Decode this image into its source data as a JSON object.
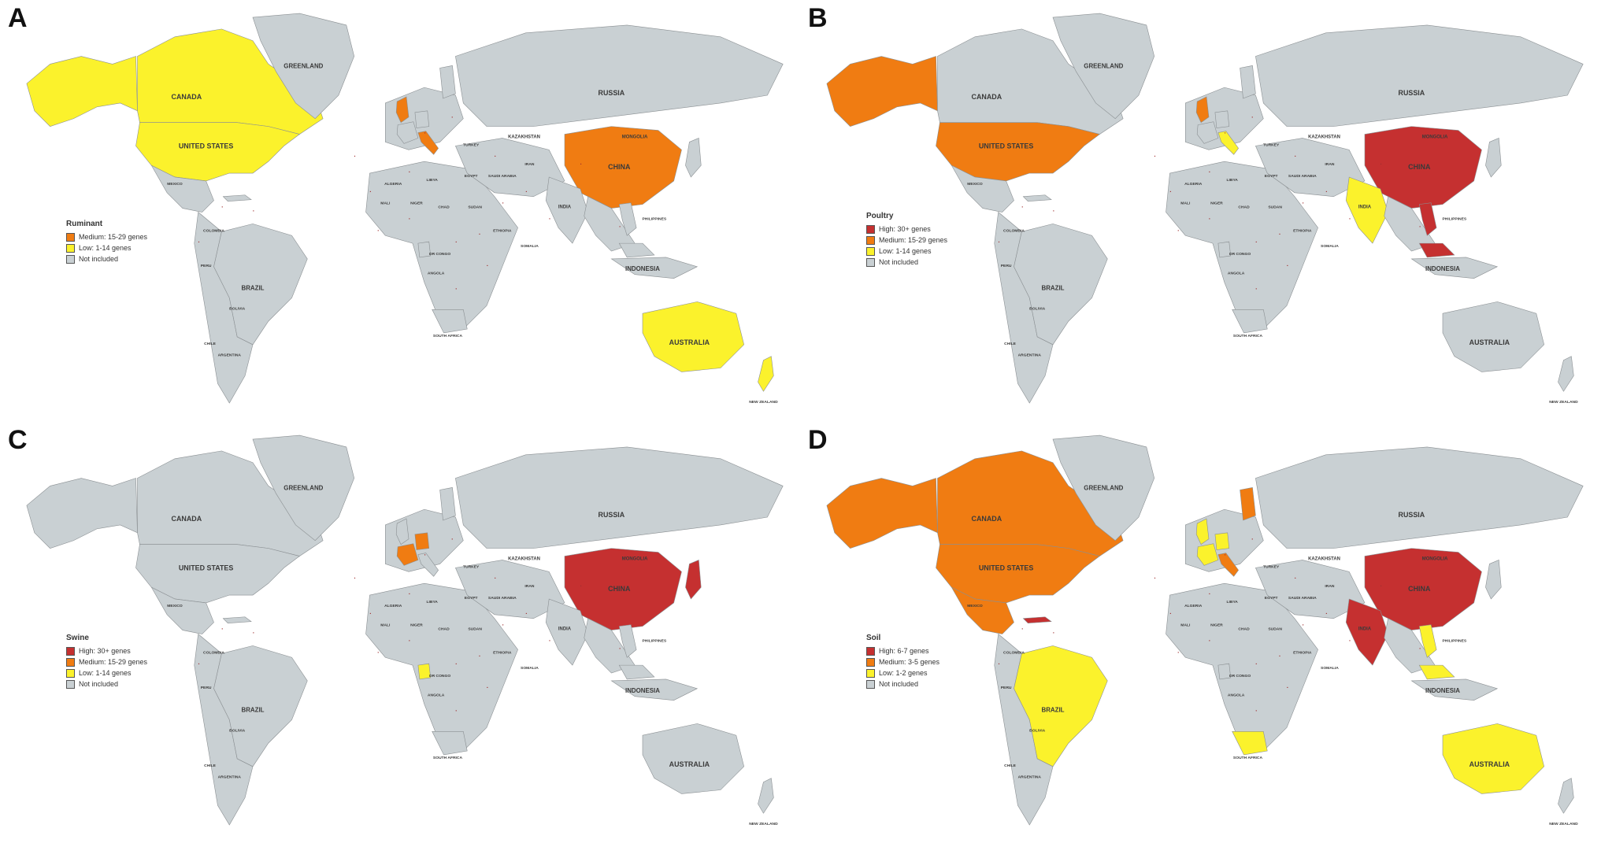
{
  "colors": {
    "high": "#c53030",
    "medium": "#f07c12",
    "low": "#fbf22c",
    "none": "#c9d0d3",
    "border": "#8a8f92",
    "ocean": "#ffffff"
  },
  "country_labels": {
    "greenland": "GREENLAND",
    "canada": "CANADA",
    "united_states": "UNITED STATES",
    "russia": "RUSSIA",
    "china": "CHINA",
    "kazakhstan": "KAZAKHSTAN",
    "mongolia": "MONGOLIA",
    "india": "INDIA",
    "indonesia": "INDONESIA",
    "australia": "AUSTRALIA",
    "brazil": "BRAZIL",
    "new_zealand": "NEW ZEALAND",
    "south_africa": "SOUTH AFRICA",
    "mexico": "MEXICO",
    "algeria": "ALGERIA",
    "libya": "LIBYA",
    "egypt": "EGYPT",
    "mali": "MALI",
    "niger": "NIGER",
    "chad": "CHAD",
    "sudan": "SUDAN",
    "ethiopia": "ETHIOPIA",
    "angola": "ANGOLA",
    "iran": "IRAN",
    "turkey": "TURKEY",
    "saudi_arabia": "SAUDI ARABIA",
    "philippines": "PHILIPPINES",
    "peru": "PERU",
    "bolivia": "BOLIVIA",
    "argentina": "ARGENTINA",
    "chile": "CHILE",
    "colombia": "COLOMBIA",
    "dr_congo": "DR CONGO",
    "somalia": "SOMALIA"
  },
  "panels": [
    {
      "letter": "A",
      "legend": {
        "title": "Ruminant",
        "items": [
          {
            "label": "Medium: 15-29 genes",
            "level": "medium"
          },
          {
            "label": "Low: 1-14 genes",
            "level": "low"
          },
          {
            "label": "Not included",
            "level": "none"
          }
        ]
      },
      "fills": {
        "alaska": "low",
        "canada": "low",
        "usa": "low",
        "mexico": "none",
        "brazil": "none",
        "greenland": "none",
        "russia": "none",
        "china": "medium",
        "australia": "low",
        "new_zealand": "low",
        "uk": "medium",
        "italy": "medium",
        "india": "none",
        "japan": "none",
        "france": "none",
        "germany": "none",
        "finland": "none",
        "south_africa": "none",
        "malaysia": "none",
        "cuba": "none",
        "vietnam": "none",
        "cameroon": "none"
      }
    },
    {
      "letter": "B",
      "legend": {
        "title": "Poultry",
        "items": [
          {
            "label": "High: 30+ genes",
            "level": "high"
          },
          {
            "label": "Medium: 15-29 genes",
            "level": "medium"
          },
          {
            "label": "Low: 1-14 genes",
            "level": "low"
          },
          {
            "label": "Not included",
            "level": "none"
          }
        ]
      },
      "fills": {
        "alaska": "medium",
        "canada": "none",
        "usa": "medium",
        "mexico": "none",
        "brazil": "none",
        "greenland": "none",
        "russia": "none",
        "china": "high",
        "australia": "none",
        "new_zealand": "none",
        "uk": "medium",
        "italy": "low",
        "india": "low",
        "japan": "none",
        "france": "none",
        "germany": "none",
        "finland": "none",
        "south_africa": "none",
        "malaysia": "high",
        "cuba": "none",
        "vietnam": "high",
        "cameroon": "none"
      }
    },
    {
      "letter": "C",
      "legend": {
        "title": "Swine",
        "items": [
          {
            "label": "High: 30+ genes",
            "level": "high"
          },
          {
            "label": "Medium: 15-29 genes",
            "level": "medium"
          },
          {
            "label": "Low: 1-14 genes",
            "level": "low"
          },
          {
            "label": "Not included",
            "level": "none"
          }
        ]
      },
      "fills": {
        "alaska": "none",
        "canada": "none",
        "usa": "none",
        "mexico": "none",
        "brazil": "none",
        "greenland": "none",
        "russia": "none",
        "china": "high",
        "australia": "none",
        "new_zealand": "none",
        "uk": "none",
        "italy": "none",
        "india": "none",
        "japan": "high",
        "france": "medium",
        "germany": "medium",
        "finland": "none",
        "south_africa": "none",
        "malaysia": "none",
        "cuba": "none",
        "vietnam": "none",
        "cameroon": "low"
      }
    },
    {
      "letter": "D",
      "legend": {
        "title": "Soil",
        "items": [
          {
            "label": "High: 6-7 genes",
            "level": "high"
          },
          {
            "label": "Medium: 3-5 genes",
            "level": "medium"
          },
          {
            "label": "Low: 1-2 genes",
            "level": "low"
          },
          {
            "label": "Not included",
            "level": "none"
          }
        ]
      },
      "fills": {
        "alaska": "medium",
        "canada": "medium",
        "usa": "medium",
        "mexico": "medium",
        "brazil": "low",
        "greenland": "none",
        "russia": "none",
        "china": "high",
        "australia": "low",
        "new_zealand": "none",
        "uk": "low",
        "italy": "medium",
        "india": "high",
        "japan": "none",
        "france": "low",
        "germany": "low",
        "finland": "medium",
        "south_africa": "low",
        "malaysia": "low",
        "cuba": "high",
        "vietnam": "low",
        "cameroon": "none"
      }
    }
  ]
}
